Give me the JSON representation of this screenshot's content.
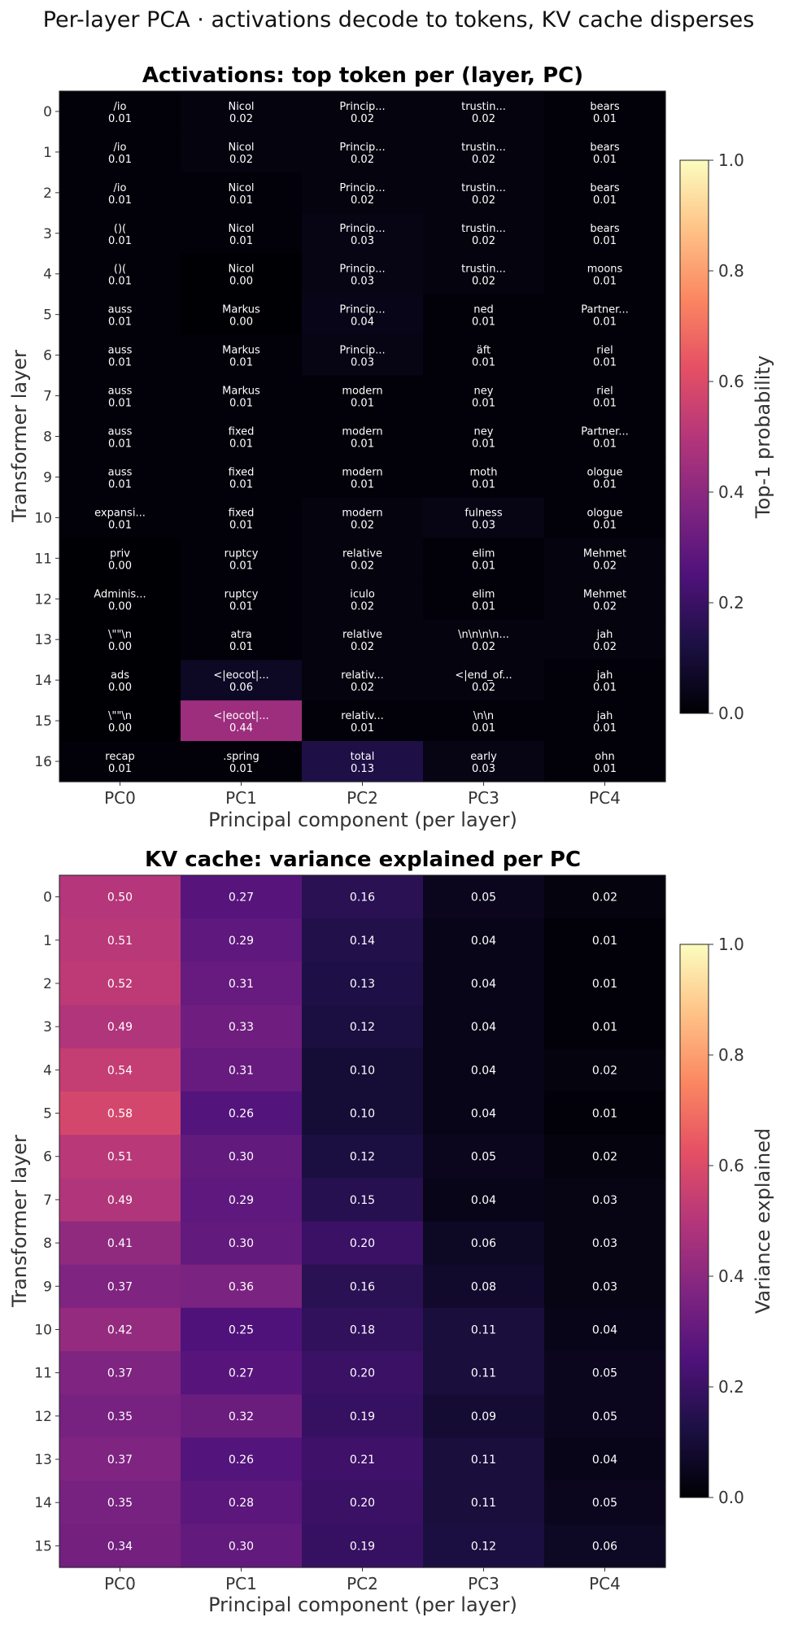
{
  "suptitle": "Per-layer PCA · activations decode to tokens, KV cache disperses",
  "chart_data": [
    {
      "type": "heatmap",
      "title": "Activations: top token per (layer, PC)",
      "xlabel": "Principal component (per layer)",
      "ylabel": "Transformer layer",
      "x": [
        "PC0",
        "PC1",
        "PC2",
        "PC3",
        "PC4"
      ],
      "y": [
        "0",
        "1",
        "2",
        "3",
        "4",
        "5",
        "6",
        "7",
        "8",
        "9",
        "10",
        "11",
        "12",
        "13",
        "14",
        "15",
        "16"
      ],
      "colorbar_label": "Top-1 probability",
      "colorbar_ticks": [
        "0.0",
        "0.2",
        "0.4",
        "0.6",
        "0.8",
        "1.0"
      ],
      "vmin": 0.0,
      "vmax": 1.0,
      "tokens": [
        [
          "/io",
          "Nicol",
          "Princip...",
          "trustin...",
          "bears"
        ],
        [
          "/io",
          "Nicol",
          "Princip...",
          "trustin...",
          "bears"
        ],
        [
          "/io",
          "Nicol",
          "Princip...",
          "trustin...",
          "bears"
        ],
        [
          "()(",
          "Nicol",
          "Princip...",
          "trustin...",
          "bears"
        ],
        [
          "()(",
          "Nicol",
          "Princip...",
          "trustin...",
          "moons"
        ],
        [
          "auss",
          "Markus",
          "Princip...",
          "ned",
          "Partner..."
        ],
        [
          "auss",
          "Markus",
          "Princip...",
          "äft",
          "riel"
        ],
        [
          "auss",
          "Markus",
          "modern",
          "ney",
          "riel"
        ],
        [
          "auss",
          "fixed",
          "modern",
          "ney",
          "Partner..."
        ],
        [
          "auss",
          "fixed",
          "modern",
          "moth",
          "ologue"
        ],
        [
          "expansi...",
          "fixed",
          "modern",
          "fulness",
          "ologue"
        ],
        [
          "priv",
          "ruptcy",
          "relative",
          "elim",
          "Mehmet"
        ],
        [
          "Adminis...",
          "ruptcy",
          "iculo",
          "elim",
          "Mehmet"
        ],
        [
          "\\\"\"\\n",
          "atra",
          "relative",
          "\\n\\n\\n\\n...",
          "jah"
        ],
        [
          "ads",
          "<|eocot|...",
          "relativ...",
          "<|end_of...",
          "jah"
        ],
        [
          "\\\"\"\\n",
          "<|eocot|...",
          "relativ...",
          "\\n\\n",
          "jah"
        ],
        [
          "recap",
          ".spring",
          "total",
          "early",
          "ohn"
        ]
      ],
      "values": [
        [
          0.01,
          0.02,
          0.02,
          0.02,
          0.01
        ],
        [
          0.01,
          0.02,
          0.02,
          0.02,
          0.01
        ],
        [
          0.01,
          0.01,
          0.02,
          0.02,
          0.01
        ],
        [
          0.01,
          0.01,
          0.03,
          0.02,
          0.01
        ],
        [
          0.01,
          0.0,
          0.03,
          0.02,
          0.01
        ],
        [
          0.01,
          0.0,
          0.04,
          0.01,
          0.01
        ],
        [
          0.01,
          0.01,
          0.03,
          0.01,
          0.01
        ],
        [
          0.01,
          0.01,
          0.01,
          0.01,
          0.01
        ],
        [
          0.01,
          0.01,
          0.01,
          0.01,
          0.01
        ],
        [
          0.01,
          0.01,
          0.01,
          0.01,
          0.01
        ],
        [
          0.01,
          0.01,
          0.02,
          0.03,
          0.01
        ],
        [
          0.0,
          0.01,
          0.02,
          0.01,
          0.02
        ],
        [
          0.0,
          0.01,
          0.02,
          0.01,
          0.02
        ],
        [
          0.0,
          0.01,
          0.02,
          0.02,
          0.02
        ],
        [
          0.0,
          0.06,
          0.02,
          0.02,
          0.01
        ],
        [
          0.0,
          0.44,
          0.01,
          0.01,
          0.01
        ],
        [
          0.01,
          0.01,
          0.13,
          0.03,
          0.01
        ]
      ],
      "value_labels": [
        [
          "0.01",
          "0.02",
          "0.02",
          "0.02",
          "0.01"
        ],
        [
          "0.01",
          "0.02",
          "0.02",
          "0.02",
          "0.01"
        ],
        [
          "0.01",
          "0.01",
          "0.02",
          "0.02",
          "0.01"
        ],
        [
          "0.01",
          "0.01",
          "0.03",
          "0.02",
          "0.01"
        ],
        [
          "0.01",
          "0.00",
          "0.03",
          "0.02",
          "0.01"
        ],
        [
          "0.01",
          "0.00",
          "0.04",
          "0.01",
          "0.01"
        ],
        [
          "0.01",
          "0.01",
          "0.03",
          "0.01",
          "0.01"
        ],
        [
          "0.01",
          "0.01",
          "0.01",
          "0.01",
          "0.01"
        ],
        [
          "0.01",
          "0.01",
          "0.01",
          "0.01",
          "0.01"
        ],
        [
          "0.01",
          "0.01",
          "0.01",
          "0.01",
          "0.01"
        ],
        [
          "0.01",
          "0.01",
          "0.02",
          "0.03",
          "0.01"
        ],
        [
          "0.00",
          "0.01",
          "0.02",
          "0.01",
          "0.02"
        ],
        [
          "0.00",
          "0.01",
          "0.02",
          "0.01",
          "0.02"
        ],
        [
          "0.00",
          "0.01",
          "0.02",
          "0.02",
          "0.02"
        ],
        [
          "0.00",
          "0.06",
          "0.02",
          "0.02",
          "0.01"
        ],
        [
          "0.00",
          "0.44",
          "0.01",
          "0.01",
          "0.01"
        ],
        [
          "0.01",
          "0.01",
          "0.13",
          "0.03",
          "0.01"
        ]
      ]
    },
    {
      "type": "heatmap",
      "title": "KV cache: variance explained per PC",
      "xlabel": "Principal component (per layer)",
      "ylabel": "Transformer layer",
      "x": [
        "PC0",
        "PC1",
        "PC2",
        "PC3",
        "PC4"
      ],
      "y": [
        "0",
        "1",
        "2",
        "3",
        "4",
        "5",
        "6",
        "7",
        "8",
        "9",
        "10",
        "11",
        "12",
        "13",
        "14",
        "15"
      ],
      "colorbar_label": "Variance explained",
      "colorbar_ticks": [
        "0.0",
        "0.2",
        "0.4",
        "0.6",
        "0.8",
        "1.0"
      ],
      "vmin": 0.0,
      "vmax": 1.0,
      "values": [
        [
          0.5,
          0.27,
          0.16,
          0.05,
          0.02
        ],
        [
          0.51,
          0.29,
          0.14,
          0.04,
          0.01
        ],
        [
          0.52,
          0.31,
          0.13,
          0.04,
          0.01
        ],
        [
          0.49,
          0.33,
          0.12,
          0.04,
          0.01
        ],
        [
          0.54,
          0.31,
          0.1,
          0.04,
          0.02
        ],
        [
          0.58,
          0.26,
          0.1,
          0.04,
          0.01
        ],
        [
          0.51,
          0.3,
          0.12,
          0.05,
          0.02
        ],
        [
          0.49,
          0.29,
          0.15,
          0.04,
          0.03
        ],
        [
          0.41,
          0.3,
          0.2,
          0.06,
          0.03
        ],
        [
          0.37,
          0.36,
          0.16,
          0.08,
          0.03
        ],
        [
          0.42,
          0.25,
          0.18,
          0.11,
          0.04
        ],
        [
          0.37,
          0.27,
          0.2,
          0.11,
          0.05
        ],
        [
          0.35,
          0.32,
          0.19,
          0.09,
          0.05
        ],
        [
          0.37,
          0.26,
          0.21,
          0.11,
          0.04
        ],
        [
          0.35,
          0.28,
          0.2,
          0.11,
          0.05
        ],
        [
          0.34,
          0.3,
          0.19,
          0.12,
          0.06
        ]
      ],
      "value_labels": [
        [
          "0.50",
          "0.27",
          "0.16",
          "0.05",
          "0.02"
        ],
        [
          "0.51",
          "0.29",
          "0.14",
          "0.04",
          "0.01"
        ],
        [
          "0.52",
          "0.31",
          "0.13",
          "0.04",
          "0.01"
        ],
        [
          "0.49",
          "0.33",
          "0.12",
          "0.04",
          "0.01"
        ],
        [
          "0.54",
          "0.31",
          "0.10",
          "0.04",
          "0.02"
        ],
        [
          "0.58",
          "0.26",
          "0.10",
          "0.04",
          "0.01"
        ],
        [
          "0.51",
          "0.30",
          "0.12",
          "0.05",
          "0.02"
        ],
        [
          "0.49",
          "0.29",
          "0.15",
          "0.04",
          "0.03"
        ],
        [
          "0.41",
          "0.30",
          "0.20",
          "0.06",
          "0.03"
        ],
        [
          "0.37",
          "0.36",
          "0.16",
          "0.08",
          "0.03"
        ],
        [
          "0.42",
          "0.25",
          "0.18",
          "0.11",
          "0.04"
        ],
        [
          "0.37",
          "0.27",
          "0.20",
          "0.11",
          "0.05"
        ],
        [
          "0.35",
          "0.32",
          "0.19",
          "0.09",
          "0.05"
        ],
        [
          "0.37",
          "0.26",
          "0.21",
          "0.11",
          "0.04"
        ],
        [
          "0.35",
          "0.28",
          "0.20",
          "0.11",
          "0.05"
        ],
        [
          "0.34",
          "0.30",
          "0.19",
          "0.12",
          "0.06"
        ]
      ]
    }
  ]
}
